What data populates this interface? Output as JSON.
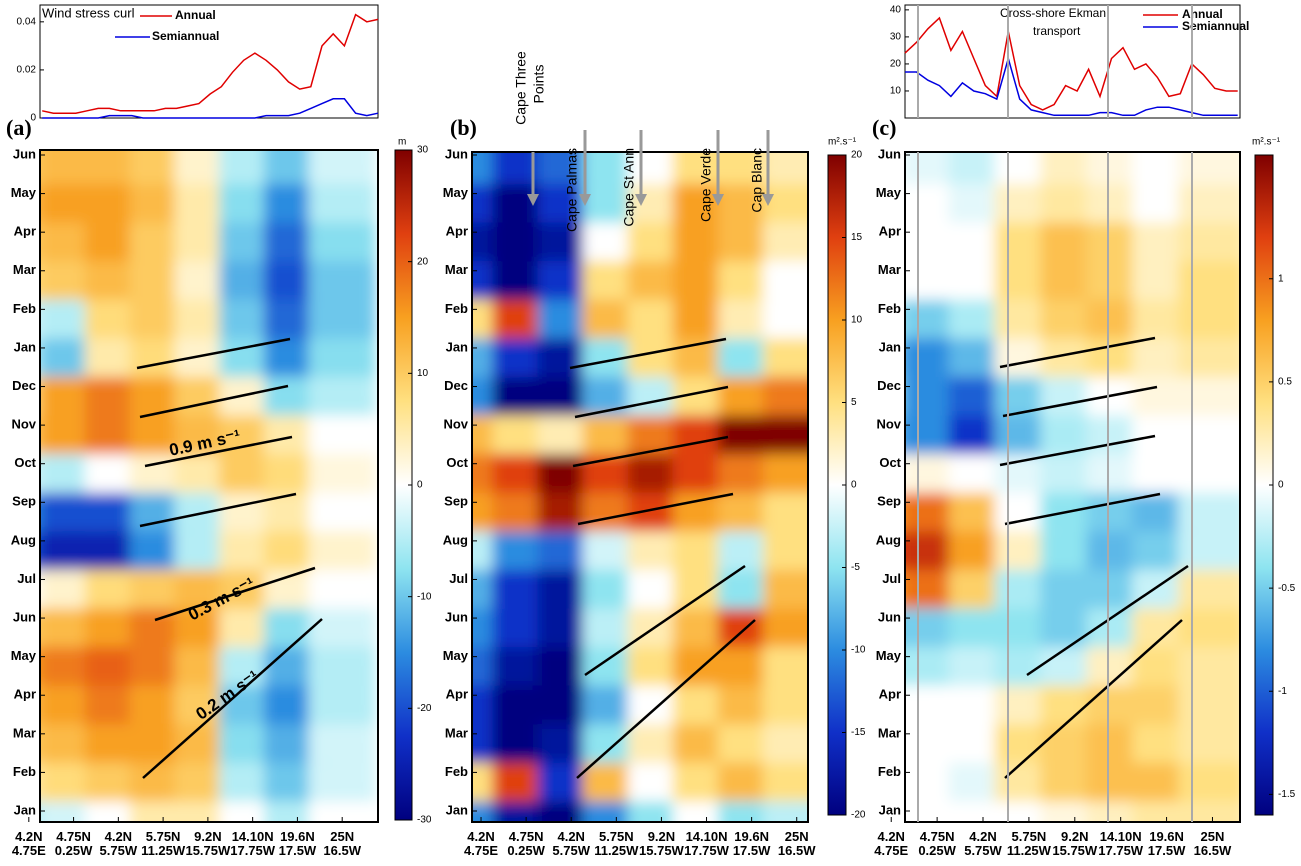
{
  "chart_data": [
    {
      "type": "line",
      "title": "Wind stress curl",
      "x": [
        0.3,
        0.55,
        0.8,
        1.05,
        1.3,
        1.55,
        1.8,
        2.05,
        2.3,
        2.55,
        2.8,
        3.05,
        3.3,
        3.55,
        3.8,
        4.05,
        4.3,
        4.55,
        4.8,
        5.05,
        5.3,
        5.55,
        5.8,
        6.05,
        6.3,
        6.55,
        6.8,
        7.05,
        7.3,
        7.55,
        7.8
      ],
      "xlim": [
        0.25,
        7.8
      ],
      "ylim": [
        0,
        0.047
      ],
      "yticks": [
        0,
        0.02,
        0.04
      ],
      "series": [
        {
          "name": "Annual",
          "color": "#e00000",
          "values": [
            0.003,
            0.002,
            0.002,
            0.002,
            0.003,
            0.004,
            0.004,
            0.003,
            0.003,
            0.003,
            0.003,
            0.004,
            0.004,
            0.005,
            0.006,
            0.01,
            0.013,
            0.019,
            0.024,
            0.027,
            0.024,
            0.02,
            0.015,
            0.012,
            0.013,
            0.03,
            0.035,
            0.03,
            0.043,
            0.04,
            0.041
          ]
        },
        {
          "name": "Semiannual",
          "color": "#0000e0",
          "values": [
            0,
            0,
            0,
            0,
            0,
            0,
            0.001,
            0.001,
            0.001,
            0,
            0,
            0,
            0,
            0,
            0,
            0,
            0,
            0,
            0,
            0,
            0.001,
            0.001,
            0.001,
            0.002,
            0.004,
            0.006,
            0.008,
            0.008,
            0.002,
            0.001,
            0.002
          ]
        }
      ]
    },
    {
      "type": "heatmap",
      "panel_label": "(a)",
      "categories": [
        "Jan",
        "Feb",
        "Mar",
        "Apr",
        "May",
        "Jun",
        "Jul",
        "Aug",
        "Sep",
        "Oct",
        "Nov",
        "Dec",
        "Jan",
        "Feb",
        "Mar",
        "Apr",
        "May",
        "Jun"
      ],
      "x": [
        0,
        1,
        2,
        3,
        4,
        5,
        6,
        7
      ],
      "xlim": [
        0.25,
        7.8
      ],
      "xticks": [
        {
          "value": 0,
          "label": [
            "4.2N",
            "4.75E"
          ]
        },
        {
          "value": 1,
          "label": [
            "4.75N",
            "0.25W"
          ]
        },
        {
          "value": 2,
          "label": [
            "4.2N",
            "5.75W"
          ]
        },
        {
          "value": 3,
          "label": [
            "5.75N",
            "11.25W"
          ]
        },
        {
          "value": 4,
          "label": [
            "9.2N",
            "15.75W"
          ]
        },
        {
          "value": 5,
          "label": [
            "14.10N",
            "17.75W"
          ]
        },
        {
          "value": 6,
          "label": [
            "19.6N",
            "17.5W"
          ]
        },
        {
          "value": 7,
          "label": [
            "25N",
            "16.5W"
          ]
        }
      ],
      "z": [
        [
          -5,
          -3,
          0,
          5,
          5,
          0,
          -5,
          0
        ],
        [
          5,
          8,
          10,
          12,
          10,
          -5,
          -10,
          -3
        ],
        [
          10,
          12,
          15,
          15,
          12,
          -8,
          -12,
          -3
        ],
        [
          12,
          15,
          18,
          15,
          10,
          -10,
          -15,
          -5
        ],
        [
          15,
          18,
          20,
          18,
          12,
          -5,
          -12,
          -5
        ],
        [
          10,
          12,
          15,
          18,
          15,
          5,
          -8,
          -3
        ],
        [
          0,
          3,
          8,
          10,
          12,
          10,
          3,
          0
        ],
        [
          -20,
          -25,
          -25,
          -15,
          -5,
          5,
          8,
          3
        ],
        [
          -15,
          -20,
          -20,
          -12,
          -5,
          3,
          5,
          0
        ],
        [
          -3,
          -5,
          0,
          3,
          5,
          10,
          8,
          2
        ],
        [
          10,
          15,
          18,
          15,
          12,
          10,
          5,
          0
        ],
        [
          8,
          15,
          18,
          15,
          10,
          3,
          -8,
          -5
        ],
        [
          -5,
          -10,
          5,
          8,
          3,
          -8,
          -15,
          -8
        ],
        [
          -3,
          -5,
          8,
          10,
          5,
          -10,
          -18,
          -10
        ],
        [
          8,
          10,
          12,
          10,
          3,
          -12,
          -20,
          -10
        ],
        [
          10,
          12,
          15,
          10,
          5,
          -10,
          -18,
          -8
        ],
        [
          12,
          15,
          15,
          12,
          5,
          -8,
          -15,
          -5
        ],
        [
          10,
          12,
          12,
          10,
          3,
          -5,
          -10,
          -3
        ]
      ],
      "zlim": [
        -30,
        30
      ],
      "zticks": [
        -30,
        -20,
        -10,
        0,
        10,
        20,
        30
      ],
      "zunit": "m",
      "colormap": [
        "#00007f",
        "#1030c8",
        "#2c8ce0",
        "#8ee4f0",
        "#ffffff",
        "#ffe080",
        "#f8a020",
        "#e04010",
        "#7f0000"
      ],
      "annotations": [
        "0.9 m s⁻¹",
        "0.3 m s⁻¹",
        "0.2 m s⁻¹"
      ]
    },
    {
      "type": "heatmap",
      "panel_label": "(b)",
      "categories": [
        "Jan",
        "Feb",
        "Mar",
        "Apr",
        "May",
        "Jun",
        "Jul",
        "Aug",
        "Sep",
        "Oct",
        "Nov",
        "Dec",
        "Jan",
        "Feb",
        "Mar",
        "Apr",
        "May",
        "Jun"
      ],
      "x": [
        0,
        1,
        2,
        3,
        4,
        5,
        6,
        7
      ],
      "xlim": [
        -0.2,
        7.25
      ],
      "xticks": [
        {
          "value": 0,
          "label": [
            "4.2N",
            "4.75E"
          ]
        },
        {
          "value": 1,
          "label": [
            "4.75N",
            "0.25W"
          ]
        },
        {
          "value": 2,
          "label": [
            "4.2N",
            "5.75W"
          ]
        },
        {
          "value": 3,
          "label": [
            "5.75N",
            "11.25W"
          ]
        },
        {
          "value": 4,
          "label": [
            "9.2N",
            "15.75W"
          ]
        },
        {
          "value": 5,
          "label": [
            "14.10N",
            "17.75W"
          ]
        },
        {
          "value": 6,
          "label": [
            "19.6N",
            "17.5W"
          ]
        },
        {
          "value": 7,
          "label": [
            "25N",
            "16.5W"
          ]
        }
      ],
      "z": [
        [
          -10,
          -18,
          -20,
          -10,
          -5,
          0,
          -5,
          -3
        ],
        [
          5,
          15,
          -15,
          8,
          0,
          5,
          8,
          5
        ],
        [
          -15,
          -20,
          -18,
          -5,
          3,
          8,
          5,
          3
        ],
        [
          -15,
          -20,
          -20,
          -8,
          0,
          5,
          8,
          5
        ],
        [
          -12,
          -18,
          -20,
          -5,
          5,
          10,
          10,
          5
        ],
        [
          -10,
          -15,
          -18,
          -3,
          3,
          8,
          15,
          10
        ],
        [
          -8,
          -15,
          -18,
          -5,
          0,
          5,
          -5,
          8
        ],
        [
          -3,
          -10,
          -12,
          -2,
          3,
          5,
          -3,
          5
        ],
        [
          10,
          12,
          18,
          12,
          15,
          10,
          8,
          5
        ],
        [
          12,
          15,
          20,
          15,
          18,
          15,
          12,
          10
        ],
        [
          8,
          5,
          3,
          8,
          12,
          15,
          20,
          20
        ],
        [
          -10,
          -20,
          -20,
          -8,
          -3,
          5,
          10,
          12
        ],
        [
          -8,
          -15,
          -18,
          -5,
          5,
          8,
          -5,
          5
        ],
        [
          5,
          15,
          -10,
          8,
          5,
          10,
          3,
          0
        ],
        [
          -15,
          -20,
          -15,
          5,
          8,
          10,
          5,
          0
        ],
        [
          -18,
          -20,
          -18,
          0,
          5,
          10,
          8,
          3
        ],
        [
          -15,
          -20,
          -15,
          -5,
          3,
          10,
          8,
          5
        ],
        [
          -10,
          -15,
          -12,
          -5,
          0,
          5,
          5,
          3
        ]
      ],
      "zlim": [
        -20,
        20
      ],
      "zticks": [
        -20,
        -15,
        -10,
        -5,
        0,
        5,
        10,
        15,
        20
      ],
      "zunit": "m².s⁻¹",
      "colormap": [
        "#00007f",
        "#1030c8",
        "#2c8ce0",
        "#8ee4f0",
        "#ffffff",
        "#ffe080",
        "#f8a020",
        "#e04010",
        "#7f0000"
      ],
      "annotations": [
        [
          "Cape Three",
          "Points"
        ],
        [
          "Cape Palmas"
        ],
        [
          "Cape St Ann"
        ],
        [
          "Cape Verde"
        ],
        [
          "Cap Blanc"
        ]
      ]
    },
    {
      "type": "heatmap",
      "panel_label": "(c)",
      "categories": [
        "Jan",
        "Feb",
        "Mar",
        "Apr",
        "May",
        "Jun",
        "Jul",
        "Aug",
        "Sep",
        "Oct",
        "Nov",
        "Dec",
        "Jan",
        "Feb",
        "Mar",
        "Apr",
        "May",
        "Jun"
      ],
      "x": [
        0,
        1,
        2,
        3,
        4,
        5,
        6,
        7
      ],
      "xlim": [
        0.3,
        7.6
      ],
      "xticks": [
        {
          "value": 0,
          "label": [
            "4.2N",
            "4.75E"
          ]
        },
        {
          "value": 1,
          "label": [
            "4.75N",
            "0.25W"
          ]
        },
        {
          "value": 2,
          "label": [
            "4.2N",
            "5.75W"
          ]
        },
        {
          "value": 3,
          "label": [
            "5.75N",
            "11.25W"
          ]
        },
        {
          "value": 4,
          "label": [
            "9.2N",
            "15.75W"
          ]
        },
        {
          "value": 5,
          "label": [
            "14.10N",
            "17.75W"
          ]
        },
        {
          "value": 6,
          "label": [
            "19.6N",
            "17.5W"
          ]
        },
        {
          "value": 7,
          "label": [
            "25N",
            "16.5W"
          ]
        }
      ],
      "z": [
        [
          0,
          0,
          0,
          0,
          0.1,
          0.2,
          0.3,
          0.3
        ],
        [
          0,
          0,
          -0.1,
          0.3,
          0.5,
          0.6,
          0.6,
          0.4
        ],
        [
          0,
          0,
          0,
          0.4,
          0.5,
          0.6,
          0.4,
          0.3
        ],
        [
          0,
          0,
          0,
          0.2,
          0.4,
          0.5,
          0.5,
          0.3
        ],
        [
          -0.3,
          -0.3,
          -0.2,
          -0.3,
          -0.2,
          0.2,
          0.4,
          0.3
        ],
        [
          -0.5,
          -0.5,
          -0.4,
          -0.4,
          -0.5,
          -0.3,
          0.3,
          0.4
        ],
        [
          0.8,
          1,
          0.5,
          -0.3,
          -0.5,
          -0.5,
          -0.2,
          0.3
        ],
        [
          1.2,
          1.3,
          0.8,
          0.2,
          -0.4,
          -0.6,
          -0.5,
          -0.2
        ],
        [
          0.8,
          1,
          0.6,
          0,
          -0.4,
          -0.5,
          -0.6,
          -0.2
        ],
        [
          0,
          0.1,
          0,
          -0.1,
          -0.2,
          -0.1,
          0,
          0
        ],
        [
          -0.6,
          -0.8,
          -1.2,
          -0.6,
          -0.3,
          -0.2,
          0,
          0
        ],
        [
          -0.4,
          -0.8,
          -1,
          -0.5,
          -0.2,
          0,
          0.1,
          0.1
        ],
        [
          -0.5,
          -0.8,
          -0.6,
          0.1,
          0.3,
          0.4,
          0.2,
          0.3
        ],
        [
          -0.3,
          -0.5,
          -0.3,
          0.3,
          0.5,
          0.6,
          0.3,
          0.4
        ],
        [
          0,
          0,
          0,
          0.4,
          0.6,
          0.5,
          0.2,
          0.4
        ],
        [
          0,
          0,
          0,
          0.4,
          0.6,
          0.5,
          0.2,
          0.3
        ],
        [
          0,
          0,
          -0.1,
          0.2,
          0.3,
          0.2,
          0,
          0.2
        ],
        [
          0,
          -0.1,
          -0.2,
          0,
          0.2,
          0.1,
          0,
          0.1
        ]
      ],
      "zlim": [
        -1.6,
        1.6
      ],
      "zticks": [
        -1.5,
        -1,
        -0.5,
        0,
        0.5,
        1
      ],
      "zunit": "m².s⁻¹",
      "colormap": [
        "#00007f",
        "#1030c8",
        "#2c8ce0",
        "#8ee4f0",
        "#ffffff",
        "#ffe080",
        "#f8a020",
        "#e04010",
        "#7f0000"
      ]
    },
    {
      "type": "line",
      "title": [
        "Cross-shore Ekman",
        "transport"
      ],
      "x": [
        0.3,
        0.55,
        0.8,
        1.05,
        1.3,
        1.55,
        1.8,
        2.05,
        2.3,
        2.55,
        2.8,
        3.05,
        3.3,
        3.55,
        3.8,
        4.05,
        4.3,
        4.55,
        4.8,
        5.05,
        5.3,
        5.55,
        5.8,
        6.05,
        6.3,
        6.55,
        6.8,
        7.05,
        7.3,
        7.55
      ],
      "xlim": [
        0.3,
        7.6
      ],
      "ylim": [
        0,
        41.8
      ],
      "yticks": [
        10,
        20,
        30,
        40
      ],
      "series": [
        {
          "name": "Annual",
          "color": "#e00000",
          "values": [
            24,
            28,
            33,
            37,
            25,
            32,
            22,
            12,
            8,
            32,
            12,
            5,
            3,
            5,
            12,
            10,
            18,
            8,
            22,
            26,
            18,
            20,
            15,
            8,
            9,
            20,
            16,
            11,
            10,
            10
          ]
        },
        {
          "name": "Semiannual",
          "color": "#0000e0",
          "values": [
            17,
            17,
            14,
            12,
            8,
            13,
            10,
            9,
            7,
            22,
            7,
            3,
            2,
            1,
            1,
            1,
            1,
            2,
            2,
            1,
            1,
            3,
            4,
            4,
            3,
            2,
            1,
            1,
            1,
            1
          ]
        }
      ]
    }
  ]
}
